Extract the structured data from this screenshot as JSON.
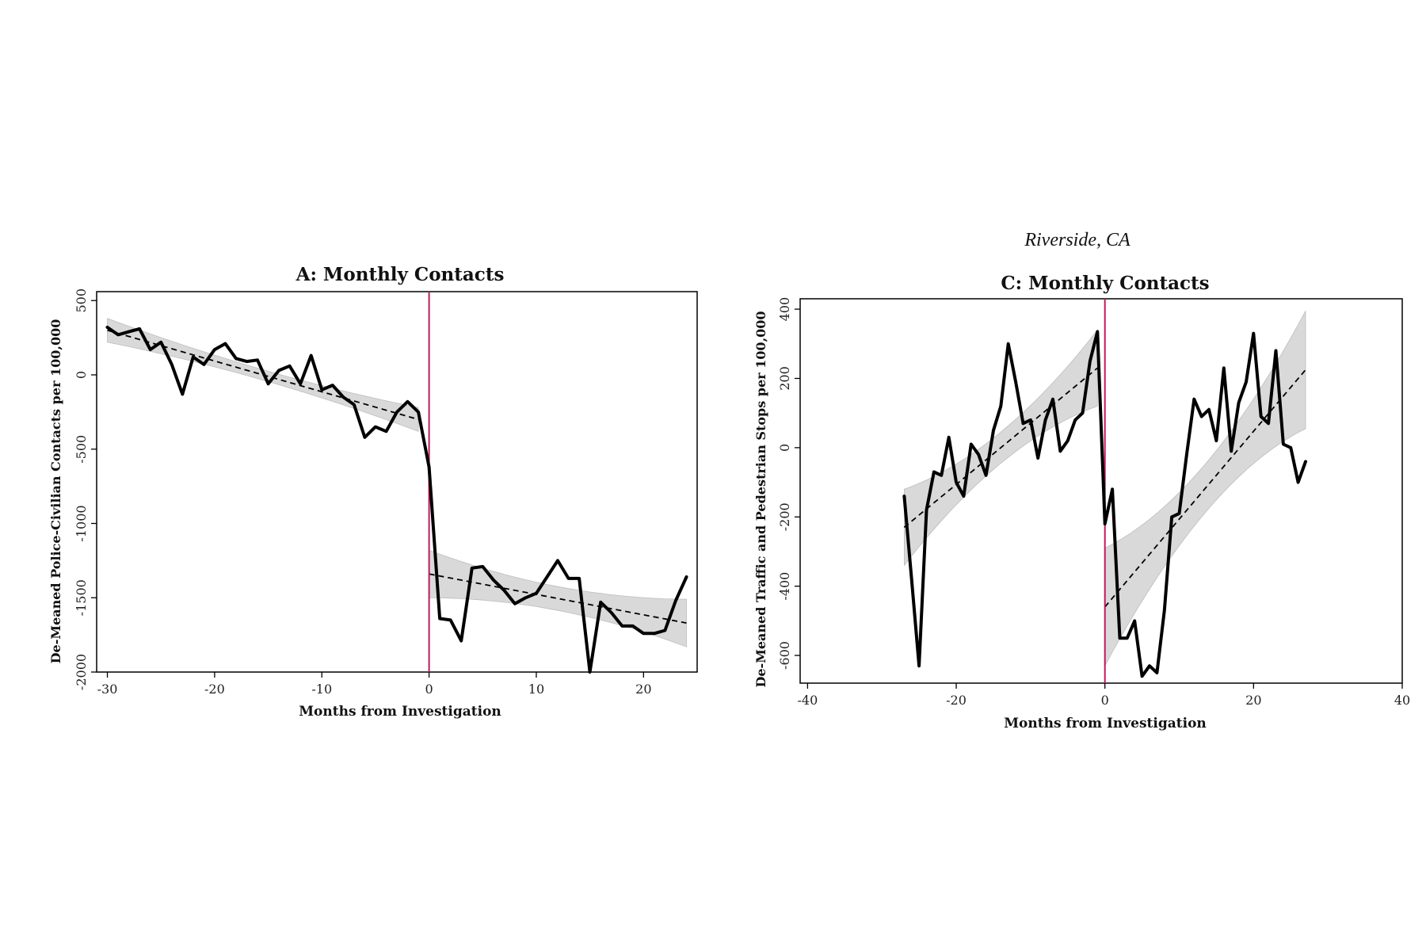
{
  "chart_data": [
    {
      "id": "A",
      "type": "line",
      "supertitle": "",
      "title": "A: Monthly Contacts",
      "xlabel": "Months from Investigation",
      "ylabel": "De-Meaned Police-Civilian Contacts per 100,000",
      "xlim": [
        -31,
        25
      ],
      "ylim": [
        -2000,
        560
      ],
      "xticks": [
        -30,
        -20,
        -10,
        0,
        10,
        20
      ],
      "yticks": [
        -2000,
        -1500,
        -1000,
        -500,
        0,
        500
      ],
      "grid": false,
      "legend": "none",
      "event_line_x": 0,
      "series": [
        {
          "x": [
            -30,
            -29,
            -28,
            -27,
            -26,
            -25,
            -24,
            -23,
            -22,
            -21,
            -20,
            -19,
            -18,
            -17,
            -16,
            -15,
            -14,
            -13,
            -12,
            -11,
            -10,
            -9,
            -8,
            -7,
            -6,
            -5,
            -4,
            -3,
            -2,
            -1,
            0,
            1,
            2,
            3,
            4,
            5,
            6,
            7,
            8,
            9,
            10,
            11,
            12,
            13,
            14,
            15,
            16,
            17,
            18,
            19,
            20,
            21,
            22,
            23,
            24
          ],
          "y": [
            320,
            270,
            290,
            310,
            170,
            220,
            70,
            -130,
            120,
            70,
            170,
            210,
            110,
            90,
            100,
            -60,
            30,
            60,
            -60,
            130,
            -100,
            -70,
            -150,
            -200,
            -420,
            -350,
            -380,
            -250,
            -180,
            -250,
            -620,
            -1640,
            -1650,
            -1790,
            -1300,
            -1290,
            -1380,
            -1450,
            -1540,
            -1500,
            -1470,
            -1360,
            -1250,
            -1370,
            -1370,
            -2000,
            -1530,
            -1600,
            -1690,
            -1690,
            -1740,
            -1740,
            -1720,
            -1520,
            -1360
          ]
        }
      ],
      "fits": [
        {
          "x": [
            -30,
            -1
          ],
          "y": [
            300,
            -300
          ],
          "ci_halfwidth": [
            80,
            35,
            80
          ]
        },
        {
          "x": [
            0,
            24
          ],
          "y": [
            -1340,
            -1670
          ],
          "ci_halfwidth": [
            160,
            80,
            160
          ]
        }
      ],
      "colors": {
        "line": "#000000",
        "fit": "#000000",
        "ci": "#d9d9d9",
        "event": "#c2185b"
      }
    },
    {
      "id": "C",
      "type": "line",
      "supertitle": "Riverside, CA",
      "title": "C: Monthly Contacts",
      "xlabel": "Months from Investigation",
      "ylabel": "De-Meaned Traffic and Pedestrian Stops per 100,000",
      "xlim": [
        -41,
        40
      ],
      "ylim": [
        -680,
        430
      ],
      "xticks": [
        -40,
        -20,
        0,
        20,
        40
      ],
      "yticks": [
        -600,
        -400,
        -200,
        0,
        200,
        400
      ],
      "grid": false,
      "legend": "none",
      "event_line_x": 0,
      "series": [
        {
          "x": [
            -27,
            -26,
            -25,
            -24,
            -23,
            -22,
            -21,
            -20,
            -19,
            -18,
            -17,
            -16,
            -15,
            -14,
            -13,
            -12,
            -11,
            -10,
            -9,
            -8,
            -7,
            -6,
            -5,
            -4,
            -3,
            -2,
            -1,
            0,
            1,
            2,
            3,
            4,
            5,
            6,
            7,
            8,
            9,
            10,
            11,
            12,
            13,
            14,
            15,
            16,
            17,
            18,
            19,
            20,
            21,
            22,
            23,
            24,
            25,
            26,
            27
          ],
          "y": [
            -140,
            -380,
            -630,
            -180,
            -70,
            -80,
            30,
            -100,
            -140,
            10,
            -20,
            -80,
            50,
            120,
            300,
            190,
            70,
            80,
            -30,
            80,
            140,
            -10,
            20,
            80,
            100,
            250,
            335,
            -220,
            -120,
            -550,
            -550,
            -500,
            -660,
            -630,
            -650,
            -470,
            -200,
            -190,
            -20,
            140,
            90,
            110,
            20,
            230,
            -10,
            130,
            190,
            330,
            90,
            70,
            280,
            10,
            0,
            -100,
            -40
          ]
        }
      ],
      "fits": [
        {
          "x": [
            -27,
            -1
          ],
          "y": [
            -230,
            230
          ],
          "ci_halfwidth": [
            110,
            45,
            110
          ]
        },
        {
          "x": [
            0,
            27
          ],
          "y": [
            -460,
            225
          ],
          "ci_halfwidth": [
            170,
            70,
            170
          ]
        }
      ],
      "colors": {
        "line": "#000000",
        "fit": "#000000",
        "ci": "#d9d9d9",
        "event": "#c2185b"
      }
    }
  ]
}
